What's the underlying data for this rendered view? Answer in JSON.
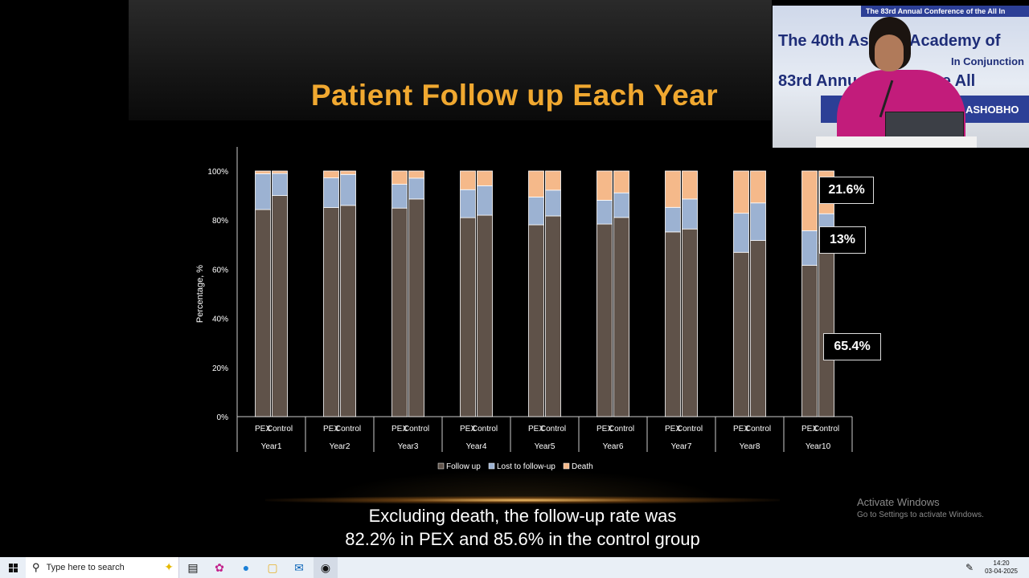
{
  "slide": {
    "title": "Patient Follow up Each Year",
    "subtitle_line1": "Excluding death, the follow-up rate was",
    "subtitle_line2": "82.2% in PEX and 85.6% in the control group"
  },
  "callouts": {
    "death": "21.6%",
    "lost": "13%",
    "follow": "65.4%"
  },
  "chart_data": {
    "type": "bar",
    "stacked": true,
    "ylabel": "Percentage, %",
    "ylim": [
      0,
      100
    ],
    "yticks": [
      "0%",
      "20%",
      "40%",
      "60%",
      "80%",
      "100%"
    ],
    "group_labels": [
      "Year1",
      "Year2",
      "Year3",
      "Year4",
      "Year5",
      "Year6",
      "Year7",
      "Year8",
      "Year10"
    ],
    "bar_labels": [
      "PEX",
      "Control"
    ],
    "legend": [
      "Follow up",
      "Lost to follow-up",
      "Death"
    ],
    "legend_position": "bottom",
    "colors": {
      "follow": "#5f5249",
      "lost": "#9cb2d2",
      "death": "#f5b98a",
      "edge": "#ffffff"
    },
    "series": [
      {
        "name": "Follow up",
        "values": [
          [
            84.3,
            90.0
          ],
          [
            85.1,
            86.0
          ],
          [
            84.9,
            88.6
          ],
          [
            81.0,
            82.0
          ],
          [
            78.1,
            81.7
          ],
          [
            78.4,
            81.1
          ],
          [
            75.2,
            76.4
          ],
          [
            66.9,
            71.7
          ],
          [
            61.6,
            70.6
          ]
        ]
      },
      {
        "name": "Lost to follow-up",
        "values": [
          [
            14.6,
            9.0
          ],
          [
            12.1,
            12.6
          ],
          [
            9.7,
            8.5
          ],
          [
            11.4,
            12.0
          ],
          [
            11.3,
            10.5
          ],
          [
            9.7,
            10.0
          ],
          [
            10.0,
            12.2
          ],
          [
            15.9,
            15.3
          ],
          [
            14.1,
            12.0
          ]
        ]
      },
      {
        "name": "Death",
        "values": [
          [
            1.1,
            1.0
          ],
          [
            2.8,
            1.4
          ],
          [
            5.4,
            2.9
          ],
          [
            7.6,
            6.0
          ],
          [
            10.6,
            7.8
          ],
          [
            11.9,
            8.9
          ],
          [
            14.8,
            11.4
          ],
          [
            17.2,
            13.0
          ],
          [
            24.3,
            17.4
          ]
        ]
      }
    ]
  },
  "video": {
    "strip_text": "The 83rd Annual Conference of the All In",
    "line1": "The 40th Asia      fic Academy of",
    "line2": "In Conjunction",
    "line3": "83rd Annual         nce of the All",
    "line4": "ASHOBHO"
  },
  "overlay": {
    "activate_title": "Activate Windows",
    "activate_sub": "Go to Settings to activate Windows."
  },
  "taskbar": {
    "search_placeholder": "Type here to search",
    "time": "14:20",
    "date": "03-04-2025"
  }
}
